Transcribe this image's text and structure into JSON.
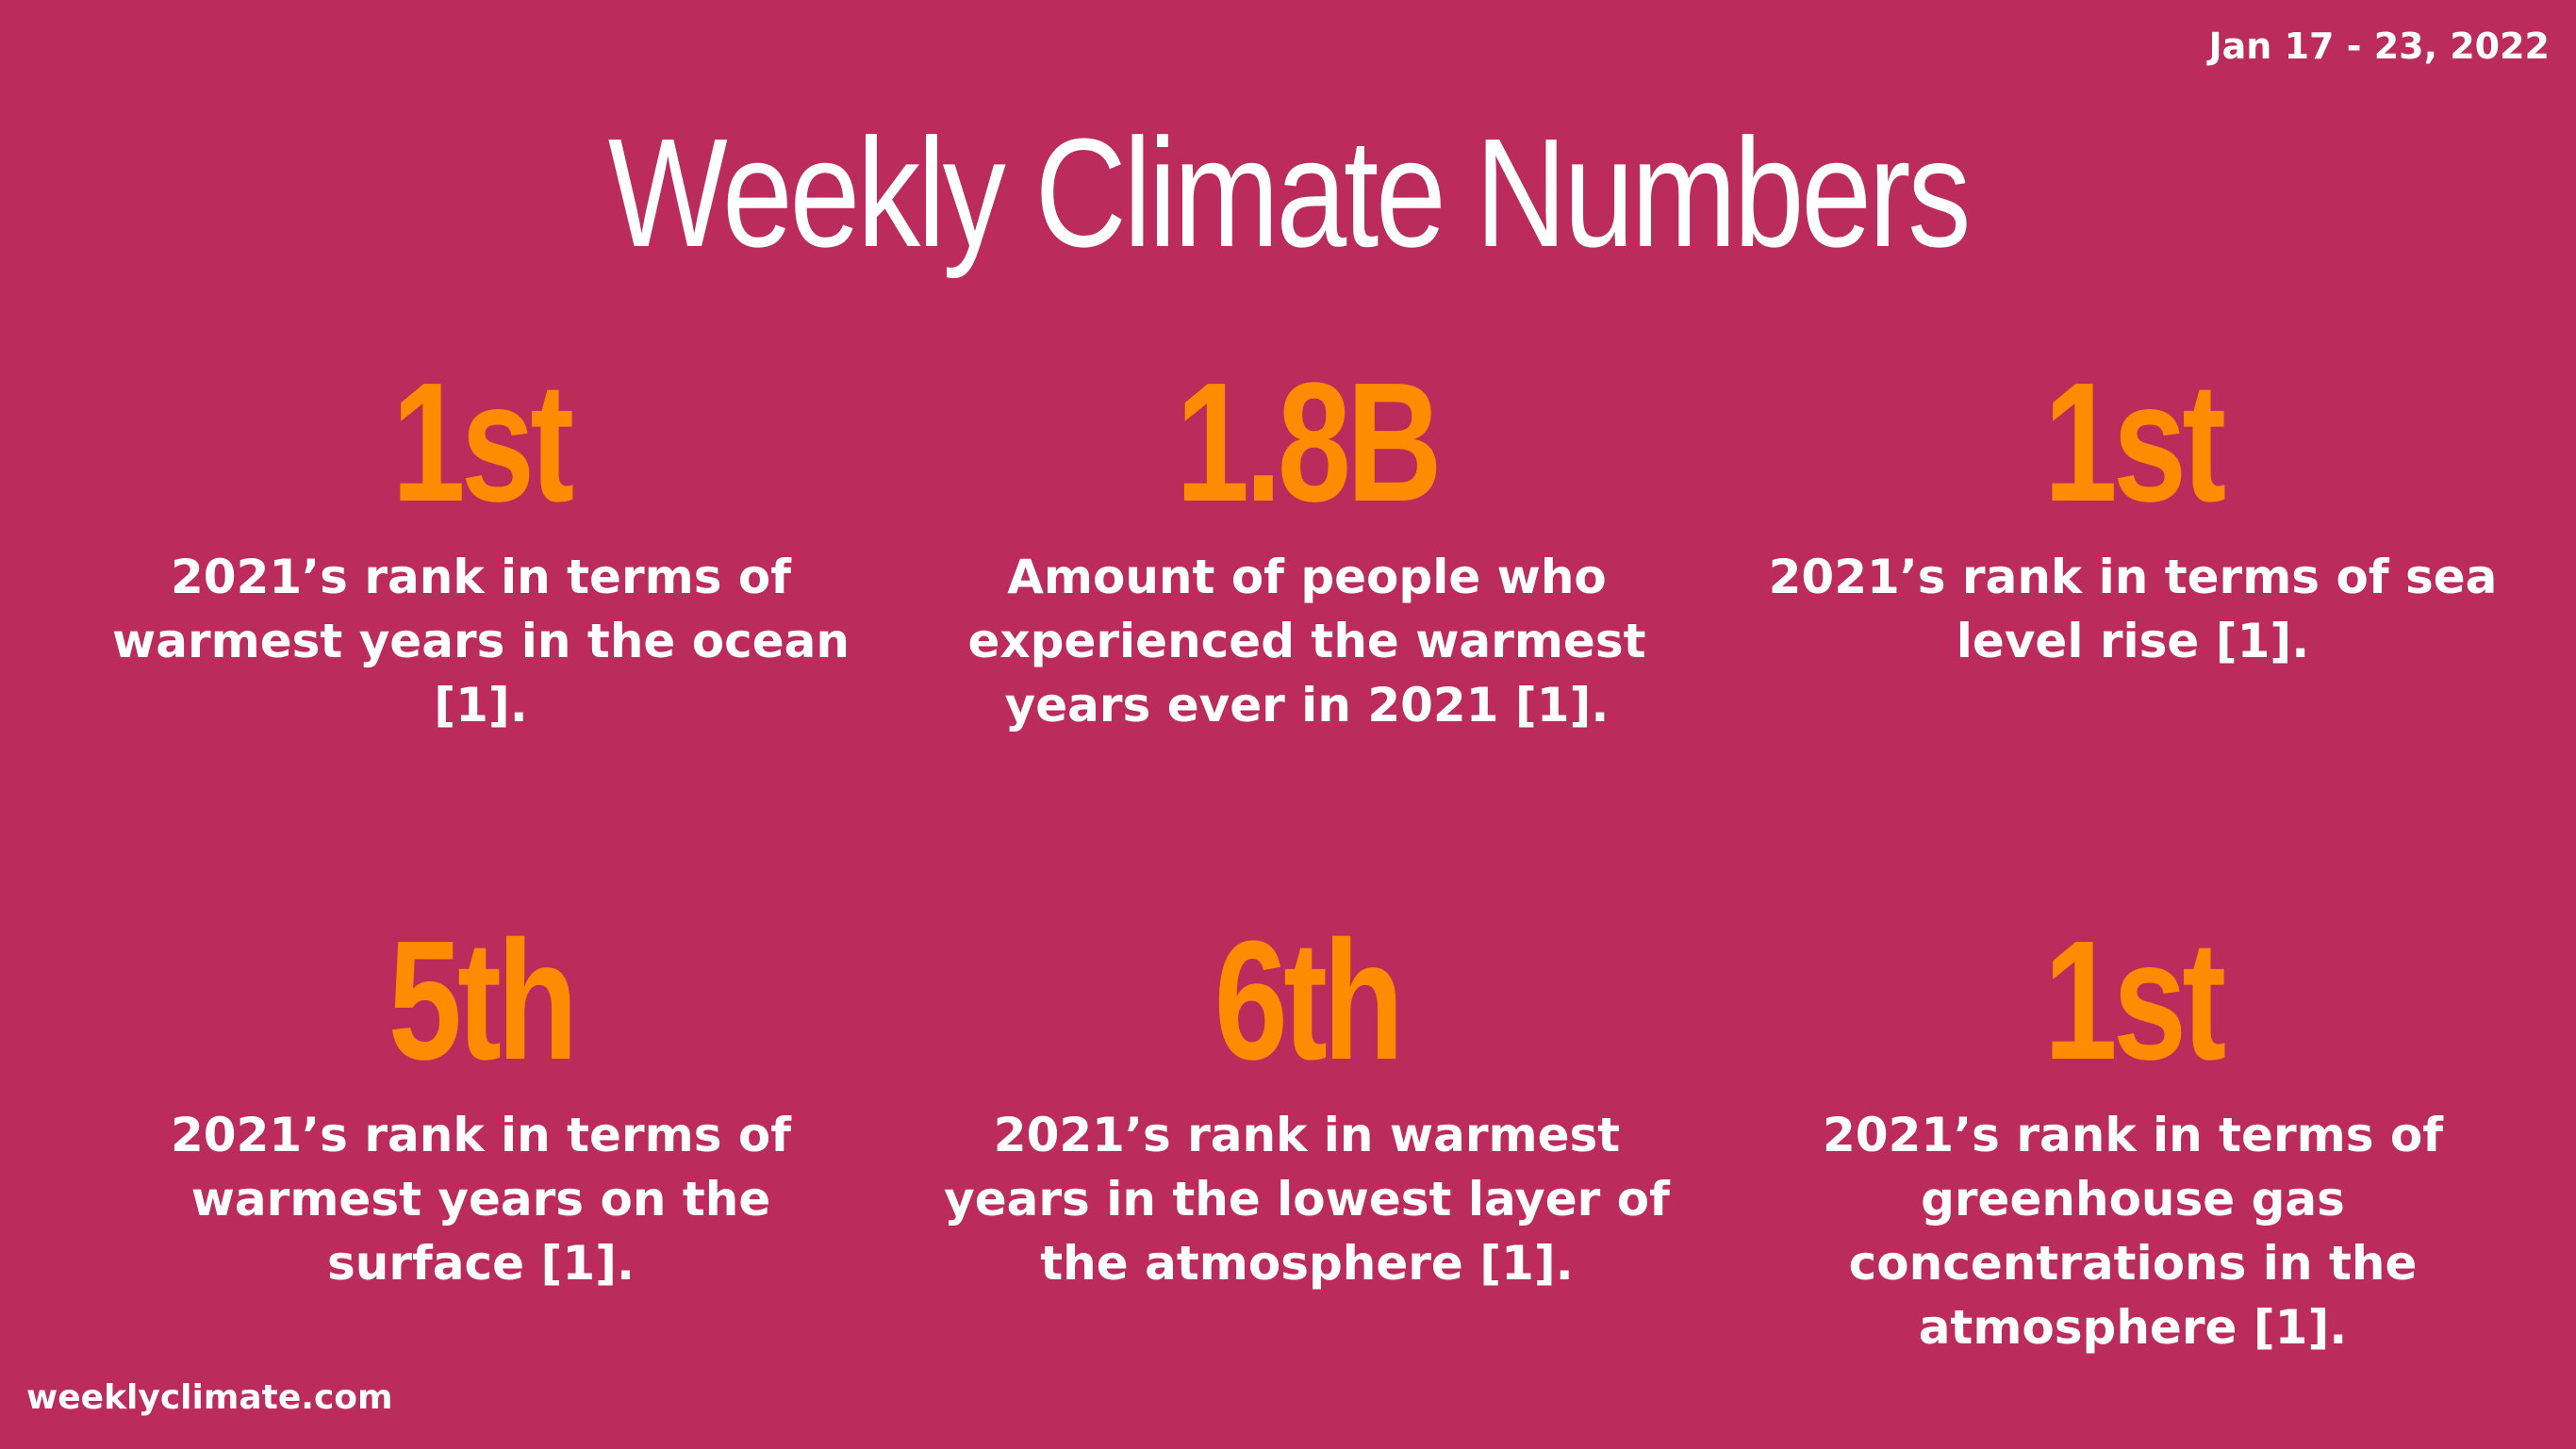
{
  "header": {
    "date_range": "Jan 17 - 23, 2022",
    "title": "Weekly Climate Numbers"
  },
  "stats": [
    {
      "value": "1st",
      "description": "2021’s rank in terms of\nwarmest years in the ocean\n[1]."
    },
    {
      "value": "1.8B",
      "description": "Amount of people who\nexperienced the warmest\nyears ever in 2021 [1]."
    },
    {
      "value": "1st",
      "description": "2021’s rank in terms of sea\nlevel rise [1]."
    },
    {
      "value": "5th",
      "description": "2021’s rank in terms of\nwarmest years on the\nsurface [1]."
    },
    {
      "value": "6th",
      "description": "2021’s rank in warmest\nyears in the lowest layer of\nthe atmosphere [1]."
    },
    {
      "value": "1st",
      "description": "2021’s rank in terms of\ngreenhouse gas\nconcentrations in the\natmosphere [1]."
    }
  ],
  "footer": {
    "site": "weeklyclimate.com"
  },
  "colors": {
    "background": "#bb2b5b",
    "accent": "#ff8c00",
    "text": "#ffffff"
  }
}
